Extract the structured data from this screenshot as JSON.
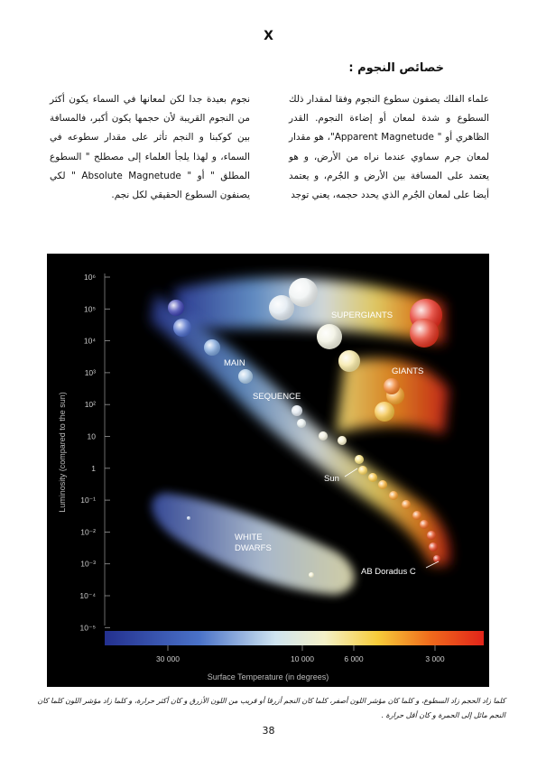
{
  "page_mark": "X",
  "heading": "خصائص النجوم :",
  "paragraph_right": "علماء الفلك يصفون سطوع النجوم وفقا لمقدار ذلك السطوع و شدة لمعان أو إضاءة النجوم. القدر الظاهري أو \" Apparent Magnetude\"، هو مقدار لمعان جرم سماوي عندما نراه من الأرض، و هو يعتمد على المسافة بين الأرض و الجُرم، و يعتمد أيضا على لمعان الجُرم الذي يحدد حجمه، يعني توجد",
  "paragraph_left": "نجوم بعيدة جدا لكن لمعانها في السماء يكون أكثر من النجوم القريبة لأن حجمها يكون أكبر، فالمسافة بين كوكبنا و النجم تأثر على مقدار سطوعه في السماء، و لهذا يلجأ العلماء إلى مصطلح \" السطوع المطلق \" أو \" Absolute Magnetude \" لكي يصنفون السطوع الحقيقي لكل نجم.",
  "chart_data": {
    "type": "scatter",
    "title": "",
    "xlabel": "Surface Temperature (in degrees)",
    "ylabel": "Luminosity (compared to the sun)",
    "x_ticks": [
      "30 000",
      "10 000",
      "6 000",
      "3 000"
    ],
    "y_ticks": [
      "10⁶",
      "10⁵",
      "10⁴",
      "10³",
      "10²",
      "10",
      "1",
      "10⁻¹",
      "10⁻²",
      "10⁻³",
      "10⁻⁴",
      "10⁻⁵"
    ],
    "regions": [
      "SUPERGIANTS",
      "GIANTS",
      "MAIN",
      "SEQUENCE",
      "WHITE",
      "DWARFS"
    ],
    "annotations": [
      "Sun",
      "AB Doradus C"
    ],
    "colors": {
      "hot": "#2a3a9a",
      "warm": "#f2e9a0",
      "cool": "#e0281a"
    }
  },
  "caption": "كلما زاد الحجم زاد السطوع، و كلما كان مؤشر اللون أصفر، كلما كان النجم أزرقا أو قريب من اللون الأزرق و كان أكثر حرارة، و كلما زاد مؤشر اللون كلما كان النجم مائل إلى الحمرة و كان أقل حرارة .",
  "page_number": "38"
}
